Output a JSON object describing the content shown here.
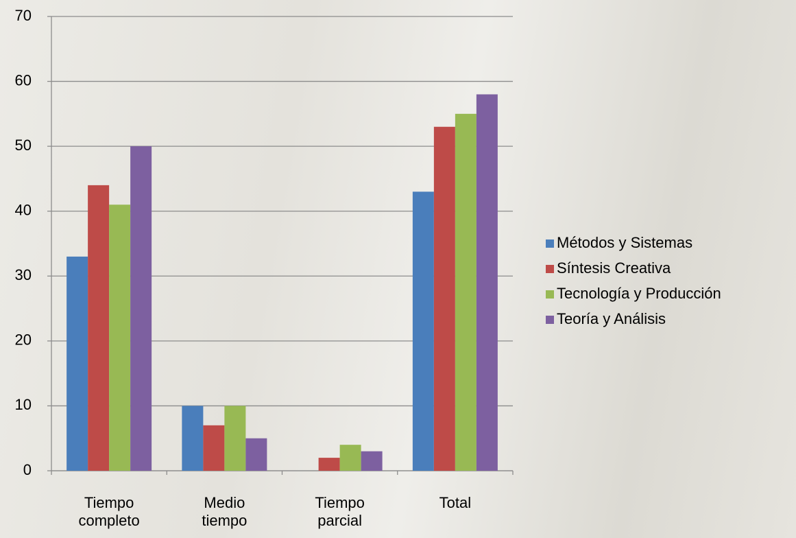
{
  "chart_data": {
    "type": "bar",
    "categories": [
      "Tiempo completo",
      "Medio tiempo",
      "Tiempo parcial",
      "Total"
    ],
    "series": [
      {
        "name": "Métodos y Sistemas",
        "color": "#4a7ebb",
        "values": [
          33,
          10,
          0,
          43
        ]
      },
      {
        "name": "Síntesis Creativa",
        "color": "#be4b48",
        "values": [
          44,
          7,
          2,
          53
        ]
      },
      {
        "name": "Tecnología y Producción",
        "color": "#98b954",
        "values": [
          41,
          10,
          4,
          55
        ]
      },
      {
        "name": "Teoría y Análisis",
        "color": "#7d60a0",
        "values": [
          50,
          5,
          3,
          58
        ]
      }
    ],
    "ylim": [
      0,
      70
    ],
    "yticks": [
      0,
      10,
      20,
      30,
      40,
      50,
      60,
      70
    ],
    "grid": true,
    "legend": "right"
  }
}
